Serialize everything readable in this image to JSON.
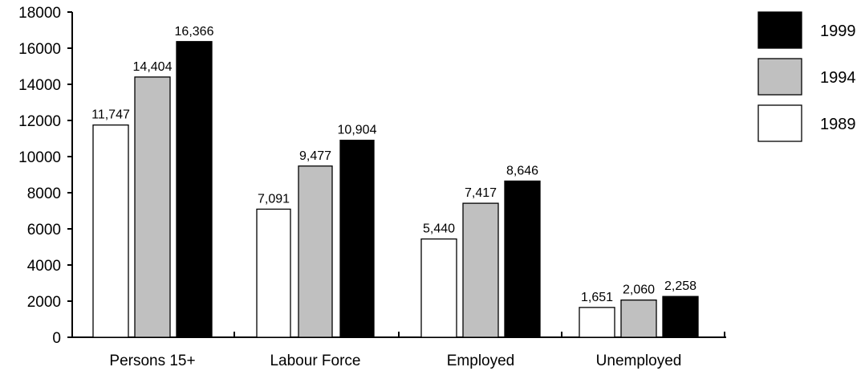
{
  "chart_data": {
    "type": "bar",
    "categories": [
      "Persons 15+",
      "Labour Force",
      "Employed",
      "Unemployed"
    ],
    "series": [
      {
        "name": "1989",
        "color": "#ffffff",
        "values": [
          11747,
          7091,
          5440,
          1651
        ],
        "labels": [
          "11,747",
          "7,091",
          "5,440",
          "1,651"
        ]
      },
      {
        "name": "1994",
        "color": "#c0c0c0",
        "values": [
          14404,
          9477,
          7417,
          2060
        ],
        "labels": [
          "14,404",
          "9,477",
          "7,417",
          "2,060"
        ]
      },
      {
        "name": "1999",
        "color": "#000000",
        "values": [
          16366,
          10904,
          8646,
          2258
        ],
        "labels": [
          "16,366",
          "10,904",
          "8,646",
          "2,258"
        ]
      }
    ],
    "yticks": [
      "0",
      "2000",
      "4000",
      "6000",
      "8000",
      "10000",
      "12000",
      "14000",
      "16000",
      "18000"
    ],
    "ylim": [
      0,
      18000
    ],
    "title": "",
    "xlabel": "",
    "ylabel": "",
    "legend": {
      "placement": "right",
      "order": [
        "1999",
        "1994",
        "1989"
      ]
    },
    "grid": false
  }
}
